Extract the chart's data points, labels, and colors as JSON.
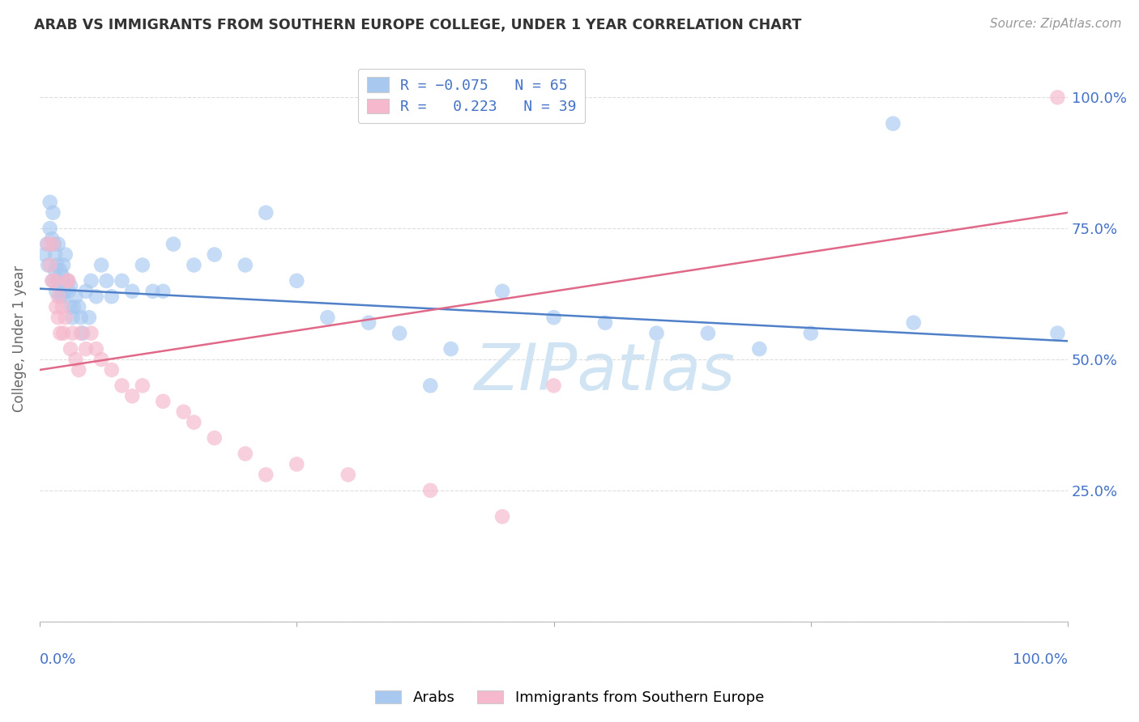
{
  "title": "ARAB VS IMMIGRANTS FROM SOUTHERN EUROPE COLLEGE, UNDER 1 YEAR CORRELATION CHART",
  "source": "Source: ZipAtlas.com",
  "ylabel": "College, Under 1 year",
  "legend_label_blue": "Arabs",
  "legend_label_pink": "Immigrants from Southern Europe",
  "blue_color": "#a8c8f0",
  "pink_color": "#f5b8cc",
  "blue_line_color": "#5080c8",
  "pink_line_color": "#e06888",
  "title_color": "#333333",
  "axis_label_color": "#4472c8",
  "watermark_color": "#d0e4f4",
  "background_color": "#ffffff",
  "grid_color": "#dddddd",
  "blue_x": [
    0.005,
    0.007,
    0.008,
    0.01,
    0.01,
    0.012,
    0.013,
    0.013,
    0.014,
    0.015,
    0.015,
    0.016,
    0.017,
    0.018,
    0.018,
    0.02,
    0.02,
    0.022,
    0.022,
    0.023,
    0.024,
    0.025,
    0.027,
    0.028,
    0.03,
    0.03,
    0.032,
    0.033,
    0.035,
    0.038,
    0.04,
    0.042,
    0.045,
    0.048,
    0.05,
    0.055,
    0.06,
    0.065,
    0.07,
    0.08,
    0.09,
    0.1,
    0.11,
    0.12,
    0.13,
    0.15,
    0.17,
    0.2,
    0.22,
    0.25,
    0.28,
    0.32,
    0.35,
    0.38,
    0.4,
    0.45,
    0.5,
    0.55,
    0.6,
    0.65,
    0.7,
    0.75,
    0.83,
    0.85,
    0.99
  ],
  "blue_y": [
    0.7,
    0.72,
    0.68,
    0.8,
    0.75,
    0.73,
    0.78,
    0.65,
    0.72,
    0.67,
    0.7,
    0.63,
    0.68,
    0.65,
    0.72,
    0.62,
    0.67,
    0.62,
    0.66,
    0.68,
    0.63,
    0.7,
    0.65,
    0.63,
    0.6,
    0.64,
    0.58,
    0.6,
    0.62,
    0.6,
    0.58,
    0.55,
    0.63,
    0.58,
    0.65,
    0.62,
    0.68,
    0.65,
    0.62,
    0.65,
    0.63,
    0.68,
    0.63,
    0.63,
    0.72,
    0.68,
    0.7,
    0.68,
    0.78,
    0.65,
    0.58,
    0.57,
    0.55,
    0.45,
    0.52,
    0.63,
    0.58,
    0.57,
    0.55,
    0.55,
    0.52,
    0.55,
    0.95,
    0.57,
    0.55
  ],
  "pink_x": [
    0.008,
    0.01,
    0.012,
    0.013,
    0.015,
    0.016,
    0.018,
    0.018,
    0.02,
    0.022,
    0.023,
    0.025,
    0.027,
    0.028,
    0.03,
    0.032,
    0.035,
    0.038,
    0.04,
    0.045,
    0.05,
    0.055,
    0.06,
    0.07,
    0.08,
    0.09,
    0.1,
    0.12,
    0.14,
    0.15,
    0.17,
    0.2,
    0.22,
    0.25,
    0.3,
    0.38,
    0.45,
    0.5,
    0.99
  ],
  "pink_y": [
    0.72,
    0.68,
    0.65,
    0.72,
    0.65,
    0.6,
    0.62,
    0.58,
    0.55,
    0.6,
    0.55,
    0.58,
    0.65,
    0.65,
    0.52,
    0.55,
    0.5,
    0.48,
    0.55,
    0.52,
    0.55,
    0.52,
    0.5,
    0.48,
    0.45,
    0.43,
    0.45,
    0.42,
    0.4,
    0.38,
    0.35,
    0.32,
    0.28,
    0.3,
    0.28,
    0.25,
    0.2,
    0.45,
    1.0
  ],
  "blue_line_x": [
    0.0,
    1.0
  ],
  "blue_line_y": [
    0.635,
    0.535
  ],
  "pink_line_x": [
    0.0,
    1.0
  ],
  "pink_line_y": [
    0.48,
    0.78
  ],
  "xlim": [
    0.0,
    1.0
  ],
  "ylim": [
    0.0,
    1.08
  ]
}
